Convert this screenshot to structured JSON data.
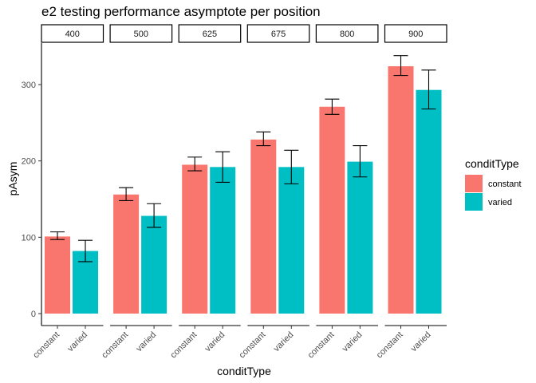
{
  "chart_data": {
    "type": "bar",
    "title": "e2 testing performance asymptote per position",
    "xlabel": "conditType",
    "ylabel": "pAsym",
    "ylim": [
      -8,
      355
    ],
    "yticks": [
      0,
      100,
      200,
      300
    ],
    "legend": {
      "title": "conditType",
      "placement": "right",
      "entries": [
        {
          "label": "constant",
          "color": "#F8766D"
        },
        {
          "label": "varied",
          "color": "#00BFC4"
        }
      ]
    },
    "categories": [
      "constant",
      "varied"
    ],
    "panels": [
      {
        "label": "400",
        "values": [
          101,
          82
        ],
        "err_low": [
          97,
          68
        ],
        "err_high": [
          107,
          96
        ]
      },
      {
        "label": "500",
        "values": [
          156,
          128
        ],
        "err_low": [
          148,
          113
        ],
        "err_high": [
          165,
          144
        ]
      },
      {
        "label": "625",
        "values": [
          195,
          192
        ],
        "err_low": [
          187,
          172
        ],
        "err_high": [
          205,
          212
        ]
      },
      {
        "label": "675",
        "values": [
          228,
          192
        ],
        "err_low": [
          220,
          170
        ],
        "err_high": [
          238,
          214
        ]
      },
      {
        "label": "800",
        "values": [
          271,
          199
        ],
        "err_low": [
          261,
          179
        ],
        "err_high": [
          281,
          220
        ]
      },
      {
        "label": "900",
        "values": [
          324,
          293
        ],
        "err_low": [
          312,
          268
        ],
        "err_high": [
          338,
          319
        ]
      }
    ],
    "grid": false
  }
}
